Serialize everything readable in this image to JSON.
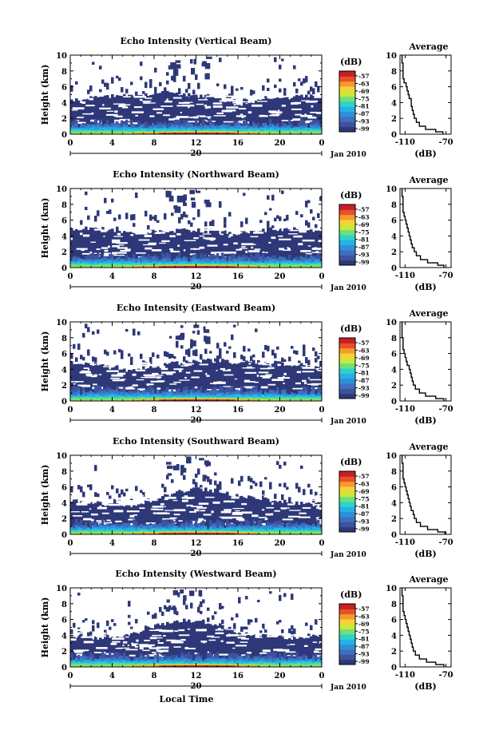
{
  "figure": {
    "xlabel_bottom": "Local Time",
    "colorbar_title": "(dB)",
    "average_title": "Average",
    "average_xlabel": "(dB)",
    "date_label": "Jan 2010",
    "day_label": "20"
  },
  "chart_data": [
    {
      "type": "heatmap",
      "title": "Echo Intensity (Vertical Beam)",
      "ylabel": "Height (km)",
      "x_ticks": [
        "0",
        "4",
        "8",
        "12",
        "16",
        "20",
        "0"
      ],
      "y_ticks": [
        "0",
        "2",
        "4",
        "6",
        "8",
        "10"
      ],
      "xlim": [
        0,
        24
      ],
      "ylim": [
        0,
        10
      ],
      "colorbar_ticks": [
        "-57",
        "-63",
        "-69",
        "-75",
        "-81",
        "-87",
        "-93",
        "-99"
      ],
      "average": {
        "title": "Average",
        "x_ticks": [
          "-110",
          "-70"
        ],
        "y_ticks": [
          "0",
          "2",
          "4",
          "6",
          "8",
          "10"
        ],
        "xlim": [
          -115,
          -65
        ],
        "profile": [
          [
            0.0,
            -73
          ],
          [
            0.3,
            -80
          ],
          [
            0.6,
            -90
          ],
          [
            1.0,
            -96
          ],
          [
            1.5,
            -99
          ],
          [
            2.0,
            -101
          ],
          [
            2.5,
            -102
          ],
          [
            3.0,
            -103
          ],
          [
            3.5,
            -104
          ],
          [
            4.0,
            -104
          ],
          [
            4.5,
            -106
          ],
          [
            5.0,
            -107
          ],
          [
            5.5,
            -108
          ],
          [
            6.0,
            -109
          ],
          [
            6.5,
            -111
          ],
          [
            7.0,
            -112
          ],
          [
            8.0,
            -112
          ],
          [
            9.0,
            -113
          ],
          [
            10.0,
            -113
          ]
        ]
      }
    },
    {
      "type": "heatmap",
      "title": "Echo Intensity (Northward Beam)",
      "ylabel": "Height (km)",
      "x_ticks": [
        "0",
        "4",
        "8",
        "12",
        "16",
        "20",
        "0"
      ],
      "y_ticks": [
        "0",
        "2",
        "4",
        "6",
        "8",
        "10"
      ],
      "xlim": [
        0,
        24
      ],
      "ylim": [
        0,
        10
      ],
      "colorbar_ticks": [
        "-57",
        "-63",
        "-69",
        "-75",
        "-81",
        "-87",
        "-93",
        "-99"
      ],
      "average": {
        "title": "Average",
        "x_ticks": [
          "-110",
          "-70"
        ],
        "y_ticks": [
          "0",
          "2",
          "4",
          "6",
          "8",
          "10"
        ],
        "xlim": [
          -115,
          -65
        ],
        "profile": [
          [
            0.0,
            -72
          ],
          [
            0.3,
            -78
          ],
          [
            0.6,
            -88
          ],
          [
            1.0,
            -95
          ],
          [
            1.5,
            -99
          ],
          [
            2.0,
            -101
          ],
          [
            2.5,
            -103
          ],
          [
            3.0,
            -104
          ],
          [
            3.5,
            -105
          ],
          [
            4.0,
            -106
          ],
          [
            4.5,
            -107
          ],
          [
            5.0,
            -108
          ],
          [
            5.5,
            -109
          ],
          [
            6.0,
            -110
          ],
          [
            6.5,
            -111
          ],
          [
            7.0,
            -112
          ],
          [
            8.0,
            -112
          ],
          [
            9.0,
            -113
          ],
          [
            10.0,
            -113
          ]
        ]
      }
    },
    {
      "type": "heatmap",
      "title": "Echo Intensity (Eastward Beam)",
      "ylabel": "Height (km)",
      "x_ticks": [
        "0",
        "4",
        "8",
        "12",
        "16",
        "20",
        "0"
      ],
      "y_ticks": [
        "0",
        "2",
        "4",
        "6",
        "8",
        "10"
      ],
      "xlim": [
        0,
        24
      ],
      "ylim": [
        0,
        10
      ],
      "colorbar_ticks": [
        "-57",
        "-63",
        "-69",
        "-75",
        "-81",
        "-87",
        "-93",
        "-99"
      ],
      "average": {
        "title": "Average",
        "x_ticks": [
          "-110",
          "-70"
        ],
        "y_ticks": [
          "0",
          "2",
          "4",
          "6",
          "8",
          "10"
        ],
        "xlim": [
          -115,
          -65
        ],
        "profile": [
          [
            0.0,
            -72
          ],
          [
            0.3,
            -80
          ],
          [
            0.6,
            -90
          ],
          [
            1.0,
            -96
          ],
          [
            1.5,
            -100
          ],
          [
            2.0,
            -102
          ],
          [
            2.5,
            -103
          ],
          [
            3.0,
            -104
          ],
          [
            3.5,
            -105
          ],
          [
            4.0,
            -106
          ],
          [
            4.5,
            -108
          ],
          [
            5.0,
            -109
          ],
          [
            5.5,
            -110
          ],
          [
            6.0,
            -111
          ],
          [
            6.5,
            -112
          ],
          [
            7.0,
            -112
          ],
          [
            8.0,
            -113
          ],
          [
            9.0,
            -113
          ],
          [
            10.0,
            -113
          ]
        ]
      }
    },
    {
      "type": "heatmap",
      "title": "Echo Intensity (Southward Beam)",
      "ylabel": "Height (km)",
      "x_ticks": [
        "0",
        "4",
        "8",
        "12",
        "16",
        "20",
        "0"
      ],
      "y_ticks": [
        "0",
        "2",
        "4",
        "6",
        "8",
        "10"
      ],
      "xlim": [
        0,
        24
      ],
      "ylim": [
        0,
        10
      ],
      "colorbar_ticks": [
        "-57",
        "-63",
        "-69",
        "-75",
        "-81",
        "-87",
        "-93",
        "-99"
      ],
      "average": {
        "title": "Average",
        "x_ticks": [
          "-110",
          "-70"
        ],
        "y_ticks": [
          "0",
          "2",
          "4",
          "6",
          "8",
          "10"
        ],
        "xlim": [
          -115,
          -65
        ],
        "profile": [
          [
            0.0,
            -71
          ],
          [
            0.3,
            -78
          ],
          [
            0.6,
            -88
          ],
          [
            1.0,
            -95
          ],
          [
            1.5,
            -99
          ],
          [
            2.0,
            -101
          ],
          [
            2.5,
            -102
          ],
          [
            3.0,
            -104
          ],
          [
            3.5,
            -105
          ],
          [
            4.0,
            -106
          ],
          [
            4.5,
            -107
          ],
          [
            5.0,
            -108
          ],
          [
            5.5,
            -109
          ],
          [
            6.0,
            -110
          ],
          [
            6.5,
            -111
          ],
          [
            7.0,
            -112
          ],
          [
            8.0,
            -112
          ],
          [
            9.0,
            -113
          ],
          [
            10.0,
            -113
          ]
        ]
      }
    },
    {
      "type": "heatmap",
      "title": "Echo Intensity (Westward Beam)",
      "ylabel": "Height (km)",
      "x_ticks": [
        "0",
        "4",
        "8",
        "12",
        "16",
        "20",
        "0"
      ],
      "y_ticks": [
        "0",
        "2",
        "4",
        "6",
        "8",
        "10"
      ],
      "xlim": [
        0,
        24
      ],
      "ylim": [
        0,
        10
      ],
      "colorbar_ticks": [
        "-57",
        "-63",
        "-69",
        "-75",
        "-81",
        "-87",
        "-93",
        "-99"
      ],
      "average": {
        "title": "Average",
        "x_ticks": [
          "-110",
          "-70"
        ],
        "y_ticks": [
          "0",
          "2",
          "4",
          "6",
          "8",
          "10"
        ],
        "xlim": [
          -115,
          -65
        ],
        "profile": [
          [
            0.0,
            -72
          ],
          [
            0.3,
            -80
          ],
          [
            0.6,
            -89
          ],
          [
            1.0,
            -96
          ],
          [
            1.5,
            -100
          ],
          [
            2.0,
            -102
          ],
          [
            2.5,
            -103
          ],
          [
            3.0,
            -104
          ],
          [
            3.5,
            -105
          ],
          [
            4.0,
            -106
          ],
          [
            4.5,
            -107
          ],
          [
            5.0,
            -108
          ],
          [
            5.5,
            -109
          ],
          [
            6.0,
            -110
          ],
          [
            6.5,
            -111
          ],
          [
            7.0,
            -112
          ],
          [
            8.0,
            -112
          ],
          [
            9.0,
            -113
          ],
          [
            10.0,
            -113
          ]
        ]
      }
    }
  ],
  "colors": {
    "background_fill": "#2e3878",
    "colormap": [
      "#2e3878",
      "#3e52a0",
      "#3f6fc0",
      "#2f8fd8",
      "#25b2e6",
      "#2fd2c8",
      "#6ee07a",
      "#c8e83a",
      "#f6d23a",
      "#f79a2c",
      "#e8502a",
      "#c81e24"
    ]
  }
}
